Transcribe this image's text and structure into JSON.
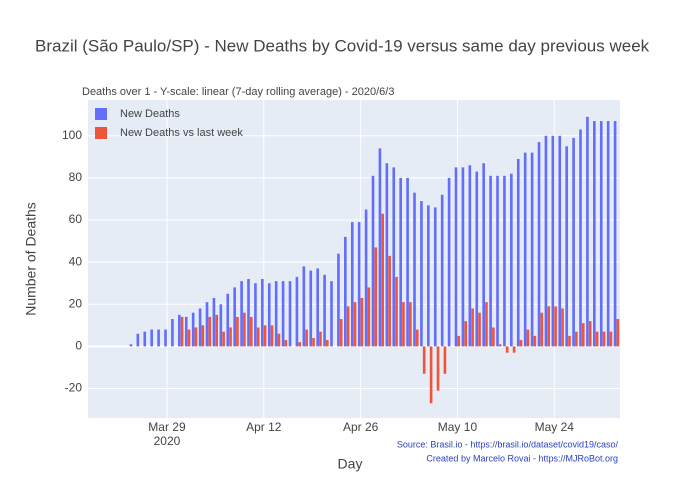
{
  "chart_data": {
    "type": "bar",
    "title": "Brazil (São Paulo/SP) - New Deaths by Covid-19 versus same day previous week",
    "subtitle": "Deaths over 1 - Y-scale: linear (7-day rolling average) - 2020/6/3",
    "x_label": "Day",
    "y_label": "Number of Deaths",
    "annotations": [
      "Source: Brasil.io - https://brasil.io/dataset/covid19/caso/",
      "Created by Marcelo Rovai - https://MJRoBot.org"
    ],
    "x": [
      "2020-03-24",
      "2020-03-25",
      "2020-03-26",
      "2020-03-27",
      "2020-03-28",
      "2020-03-29",
      "2020-03-30",
      "2020-03-31",
      "2020-04-01",
      "2020-04-02",
      "2020-04-03",
      "2020-04-04",
      "2020-04-05",
      "2020-04-06",
      "2020-04-07",
      "2020-04-08",
      "2020-04-09",
      "2020-04-10",
      "2020-04-11",
      "2020-04-12",
      "2020-04-13",
      "2020-04-14",
      "2020-04-15",
      "2020-04-16",
      "2020-04-17",
      "2020-04-18",
      "2020-04-19",
      "2020-04-20",
      "2020-04-21",
      "2020-04-22",
      "2020-04-23",
      "2020-04-24",
      "2020-04-25",
      "2020-04-26",
      "2020-04-27",
      "2020-04-28",
      "2020-04-29",
      "2020-04-30",
      "2020-05-01",
      "2020-05-02",
      "2020-05-03",
      "2020-05-04",
      "2020-05-05",
      "2020-05-06",
      "2020-05-07",
      "2020-05-08",
      "2020-05-09",
      "2020-05-10",
      "2020-05-11",
      "2020-05-12",
      "2020-05-13",
      "2020-05-14",
      "2020-05-15",
      "2020-05-16",
      "2020-05-17",
      "2020-05-18",
      "2020-05-19",
      "2020-05-20",
      "2020-05-21",
      "2020-05-22",
      "2020-05-23",
      "2020-05-24",
      "2020-05-25",
      "2020-05-26",
      "2020-05-27",
      "2020-05-28",
      "2020-05-29",
      "2020-05-30",
      "2020-05-31",
      "2020-06-01",
      "2020-06-02"
    ],
    "series": [
      {
        "name": "New Deaths",
        "color": "#636efa",
        "values": [
          1,
          6,
          7,
          8,
          8,
          8,
          13,
          15,
          14,
          16,
          18,
          21,
          23,
          20,
          25,
          28,
          31,
          32,
          30,
          32,
          30,
          31,
          31,
          31,
          33,
          38,
          36,
          37,
          34,
          31,
          44,
          52,
          59,
          59,
          65,
          81,
          94,
          87,
          85,
          80,
          80,
          73,
          69,
          67,
          66,
          72,
          80,
          85,
          85,
          86,
          83,
          87,
          81,
          81,
          81,
          82,
          89,
          92,
          92,
          97,
          100,
          100,
          100,
          95,
          99,
          103,
          109,
          107,
          107,
          107,
          107
        ]
      },
      {
        "name": "New Deaths vs last week",
        "color": "#ef553b",
        "values": [
          null,
          null,
          null,
          null,
          null,
          null,
          null,
          14,
          8,
          9,
          10,
          14,
          15,
          7,
          9,
          14,
          16,
          14,
          9,
          10,
          10,
          6,
          3,
          0,
          2,
          8,
          4,
          7,
          3,
          0,
          13,
          19,
          21,
          23,
          28,
          47,
          63,
          43,
          33,
          21,
          21,
          8,
          -13,
          -27,
          -21,
          -13,
          0,
          5,
          12,
          18,
          16,
          21,
          9,
          1,
          -3,
          -3,
          3,
          8,
          5,
          16,
          19,
          19,
          18,
          5,
          7,
          11,
          12,
          7,
          7,
          7,
          13
        ]
      }
    ],
    "xlim": [
      "2020-03-17T14:00:00",
      "2020-06-02T12:00:00"
    ],
    "xticks": [
      {
        "value": "2020-03-29",
        "label": "Mar 29"
      },
      {
        "value": "2020-04-12",
        "label": "Apr 12"
      },
      {
        "value": "2020-04-26",
        "label": "Apr 26"
      },
      {
        "value": "2020-05-10",
        "label": "May 10"
      },
      {
        "value": "2020-05-24",
        "label": "May 24"
      }
    ],
    "x_year": "2020",
    "ylim": [
      -34,
      117
    ],
    "yticks": [
      -20,
      0,
      20,
      40,
      60,
      80,
      100
    ],
    "grid": true,
    "legend": "top-left"
  }
}
